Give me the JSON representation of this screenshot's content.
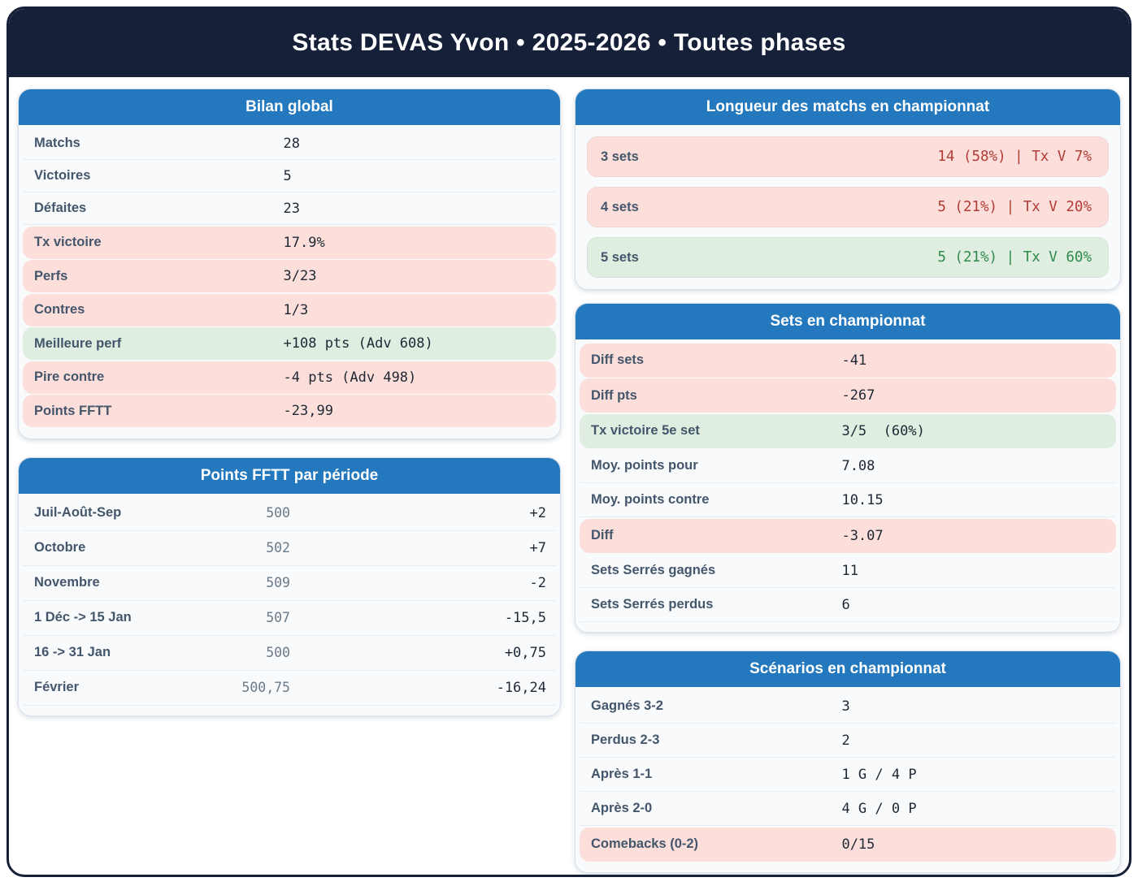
{
  "header": {
    "title": "Stats DEVAS Yvon • 2025-2026 • Toutes phases"
  },
  "colors": {
    "navy": "#172039",
    "header_blue": "#2478bd",
    "bad_bg": "#fcdeda",
    "good_bg": "#dfeee1",
    "bad_text": "#b23c36",
    "good_text": "#2f8b4b",
    "label_text": "#44566b",
    "value_text": "#1e2835"
  },
  "cards": {
    "bilan": {
      "title": "Bilan global",
      "rows": [
        {
          "label": "Matchs",
          "value": "28",
          "tone": "plain"
        },
        {
          "label": "Victoires",
          "value": "5",
          "tone": "plain"
        },
        {
          "label": "Défaites",
          "value": "23",
          "tone": "plain"
        },
        {
          "label": "Tx victoire",
          "value": "17.9%",
          "tone": "bad"
        },
        {
          "label": "Perfs",
          "value": "3/23",
          "tone": "bad"
        },
        {
          "label": "Contres",
          "value": "1/3",
          "tone": "bad"
        },
        {
          "label": "Meilleure perf",
          "value": "+108 pts (Adv 608)",
          "tone": "good"
        },
        {
          "label": "Pire contre",
          "value": "-4 pts (Adv 498)",
          "tone": "bad"
        },
        {
          "label": "Points FFTT",
          "value": "-23,99",
          "tone": "bad"
        }
      ]
    },
    "fftt": {
      "title": "Points FFTT par période",
      "rows": [
        {
          "label": "Juil-Août-Sep",
          "value": "500",
          "delta": "+2"
        },
        {
          "label": "Octobre",
          "value": "502",
          "delta": "+7"
        },
        {
          "label": "Novembre",
          "value": "509",
          "delta": "-2"
        },
        {
          "label": "1 Déc -> 15 Jan",
          "value": "507",
          "delta": "-15,5"
        },
        {
          "label": "16 -> 31 Jan",
          "value": "500",
          "delta": "+0,75"
        },
        {
          "label": "Février",
          "value": "500,75",
          "delta": "-16,24"
        }
      ]
    },
    "longueur": {
      "title": "Longueur des matchs en championnat",
      "rows": [
        {
          "label": "3 sets",
          "value": "14 (58%) | Tx V 7%",
          "tone": "bad"
        },
        {
          "label": "4 sets",
          "value": "5 (21%) | Tx V 20%",
          "tone": "bad"
        },
        {
          "label": "5 sets",
          "value": "5 (21%) | Tx V 60%",
          "tone": "good"
        }
      ]
    },
    "sets": {
      "title": "Sets en championnat",
      "rows": [
        {
          "label": "Diff sets",
          "value": "-41",
          "tone": "bad"
        },
        {
          "label": "Diff pts",
          "value": "-267",
          "tone": "bad"
        },
        {
          "label": "Tx victoire 5e set",
          "value": "3/5  (60%)",
          "tone": "good"
        },
        {
          "label": "Moy. points pour",
          "value": "7.08",
          "tone": "plain"
        },
        {
          "label": "Moy. points contre",
          "value": "10.15",
          "tone": "plain"
        },
        {
          "label": "Diff",
          "value": "-3.07",
          "tone": "bad"
        },
        {
          "label": "Sets Serrés gagnés",
          "value": "11",
          "tone": "plain"
        },
        {
          "label": "Sets Serrés perdus",
          "value": "6",
          "tone": "plain"
        }
      ]
    },
    "scenarios": {
      "title": "Scénarios en championnat",
      "rows": [
        {
          "label": "Gagnés 3-2",
          "value": "3",
          "tone": "plain"
        },
        {
          "label": "Perdus 2-3",
          "value": "2",
          "tone": "plain"
        },
        {
          "label": "Après 1-1",
          "value": "1 G / 4 P",
          "tone": "plain"
        },
        {
          "label": "Après 2-0",
          "value": "4 G / 0 P",
          "tone": "plain"
        },
        {
          "label": "Comebacks (0-2)",
          "value": "0/15",
          "tone": "bad"
        }
      ]
    }
  }
}
